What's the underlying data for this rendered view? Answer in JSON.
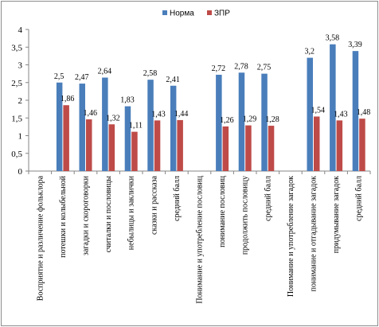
{
  "chart_data": {
    "type": "bar",
    "categories": [
      "Восприятие и различение фольклора",
      "потешки и колыбельной",
      "загадки и скороговорки",
      "считалки и пословицы",
      "небылицы и заклички",
      "сказки и рассказа",
      "средний балл",
      "Понимание и употребление пословиц",
      "понимание пословиц",
      "продолжить пословицу",
      "средний балл",
      "Понимание и употребление загадок",
      "понимание и отгадывание загадок",
      "придумывание загадок",
      "средний балл"
    ],
    "series": [
      {
        "name": "Норма",
        "color": "#4a7ebb",
        "values": [
          null,
          2.5,
          2.47,
          2.64,
          1.83,
          2.58,
          2.41,
          null,
          2.72,
          2.78,
          2.75,
          null,
          3.2,
          3.58,
          3.39
        ],
        "labels": [
          "",
          "2,5",
          "2,47",
          "2,64",
          "1,83",
          "2,58",
          "2,41",
          "",
          "2,72",
          "2,78",
          "2,75",
          "",
          "3,2",
          "3,58",
          "3,39"
        ]
      },
      {
        "name": "ЗПР",
        "color": "#be4b48",
        "values": [
          null,
          1.86,
          1.46,
          1.32,
          1.11,
          1.43,
          1.44,
          null,
          1.26,
          1.29,
          1.28,
          null,
          1.54,
          1.43,
          1.48
        ],
        "labels": [
          "",
          "1,86",
          "1,46",
          "1,32",
          "1,11",
          "1,43",
          "1,44",
          "",
          "1,26",
          "1,29",
          "1,28",
          "",
          "1,54",
          "1,43",
          "1,48"
        ]
      }
    ],
    "ylim": [
      0,
      4
    ],
    "yticks": [
      0,
      0.5,
      1,
      1.5,
      2,
      2.5,
      3,
      3.5,
      4
    ],
    "ytick_labels": [
      "0",
      "0,5",
      "1",
      "1,5",
      "2",
      "2,5",
      "3",
      "3,5",
      "4"
    ],
    "title": "",
    "xlabel": "",
    "ylabel": "",
    "legend_position": "top-center",
    "grid": false
  }
}
